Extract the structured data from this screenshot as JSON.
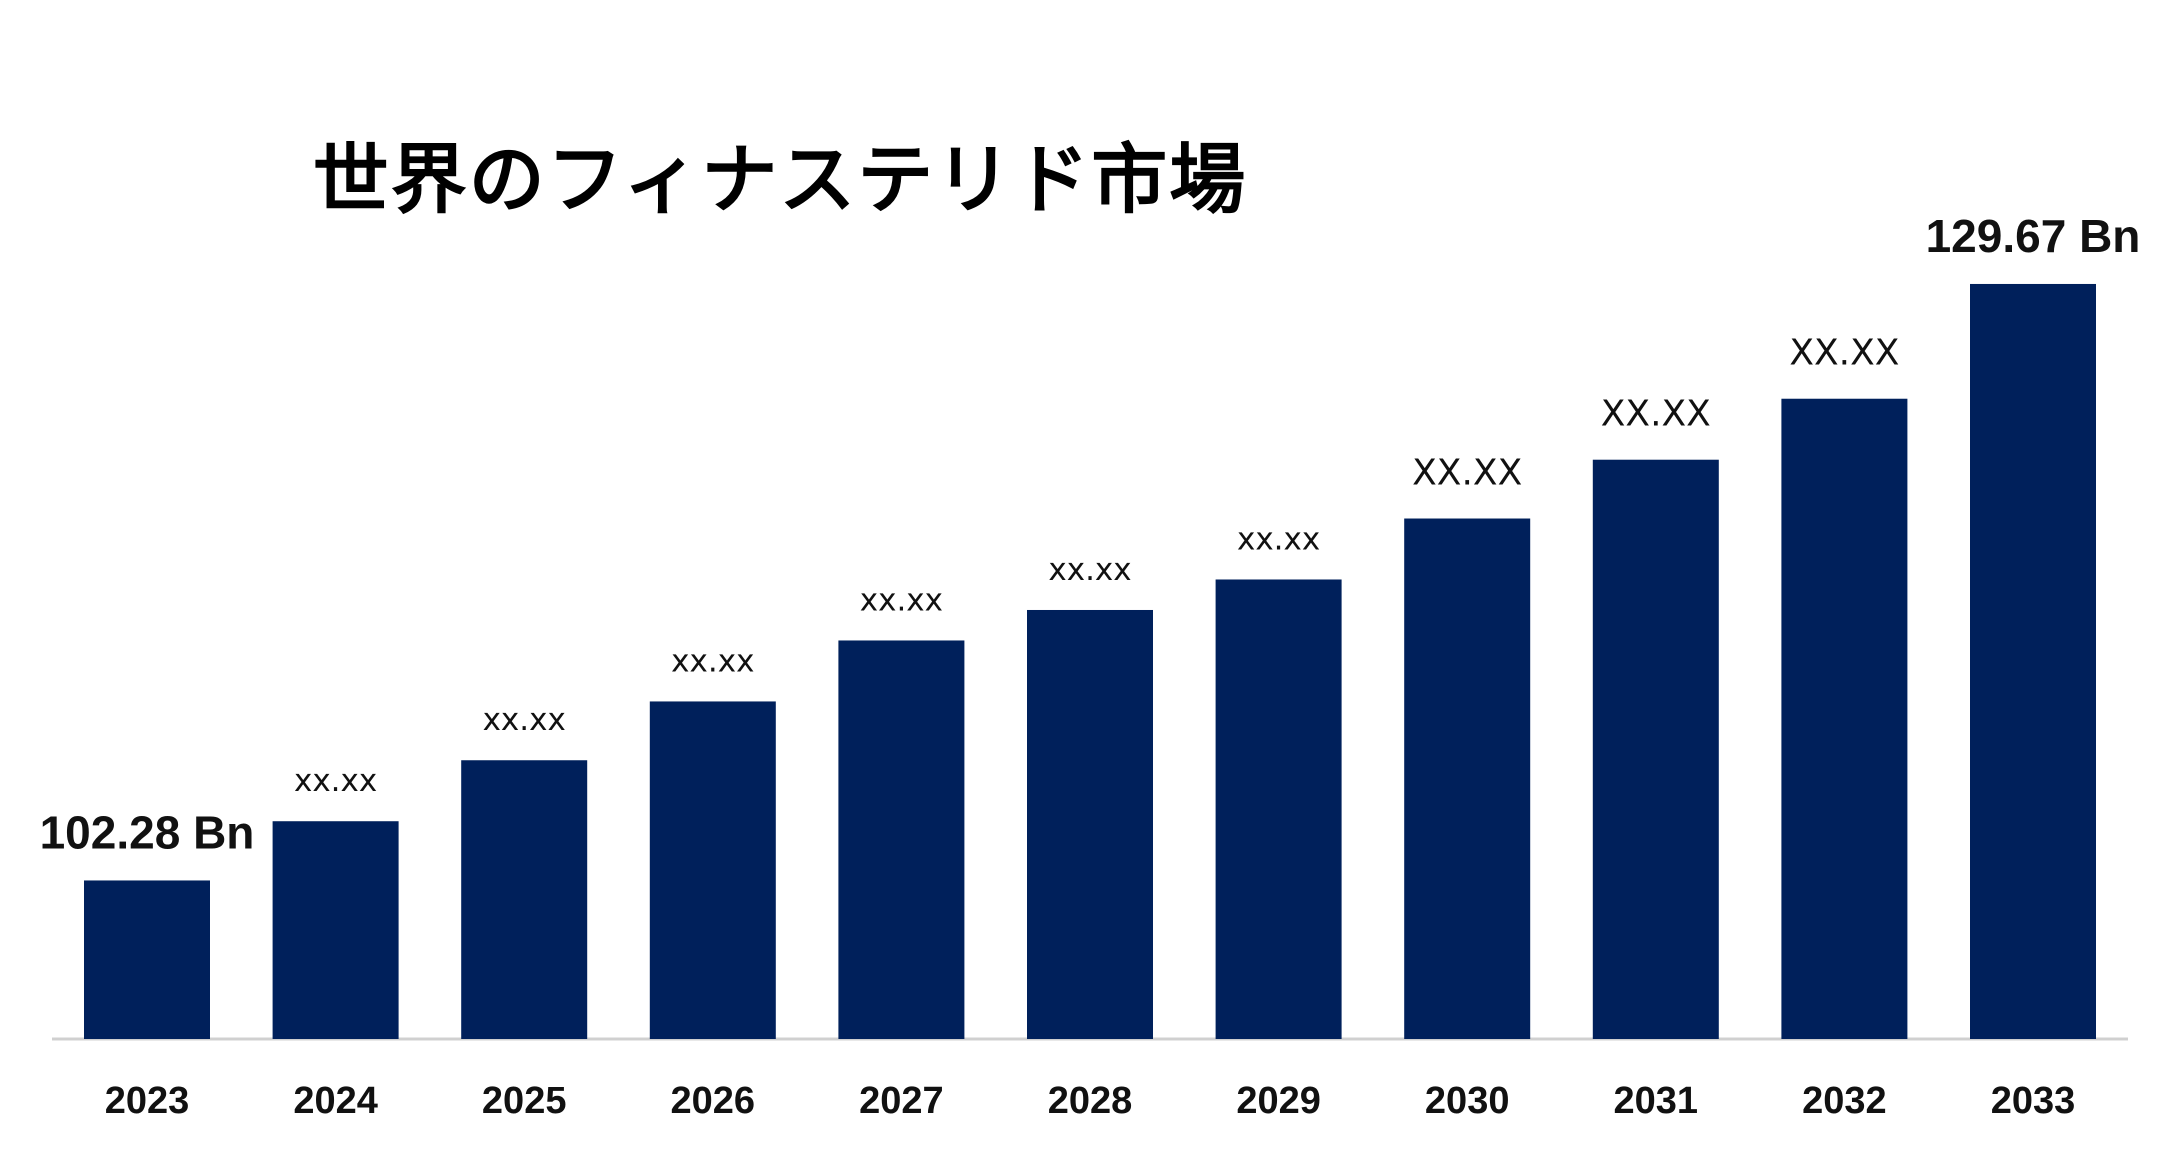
{
  "chart_data": {
    "type": "bar",
    "title": "世界のフィナステリド市場",
    "xlabel": "",
    "ylabel": "",
    "categories": [
      "2023",
      "2024",
      "2025",
      "2026",
      "2027",
      "2028",
      "2029",
      "2030",
      "2031",
      "2032",
      "2033"
    ],
    "values": [
      102.28,
      105.0,
      107.8,
      110.5,
      113.3,
      114.7,
      116.1,
      118.9,
      121.6,
      124.4,
      129.67
    ],
    "data_labels": [
      "102.28 Bn",
      "xx.xx",
      "xx.xx",
      "xx.xx",
      "xx.xx",
      "xx.xx",
      "xx.xx",
      "XX.XX",
      "XX.XX",
      "XX.XX",
      "129.67 Bn"
    ],
    "ylim": [
      95.0,
      131.0
    ],
    "grid": false,
    "legend": "none",
    "colors": {
      "bar": "#00205b",
      "baseline": "#d0d0d0"
    }
  }
}
